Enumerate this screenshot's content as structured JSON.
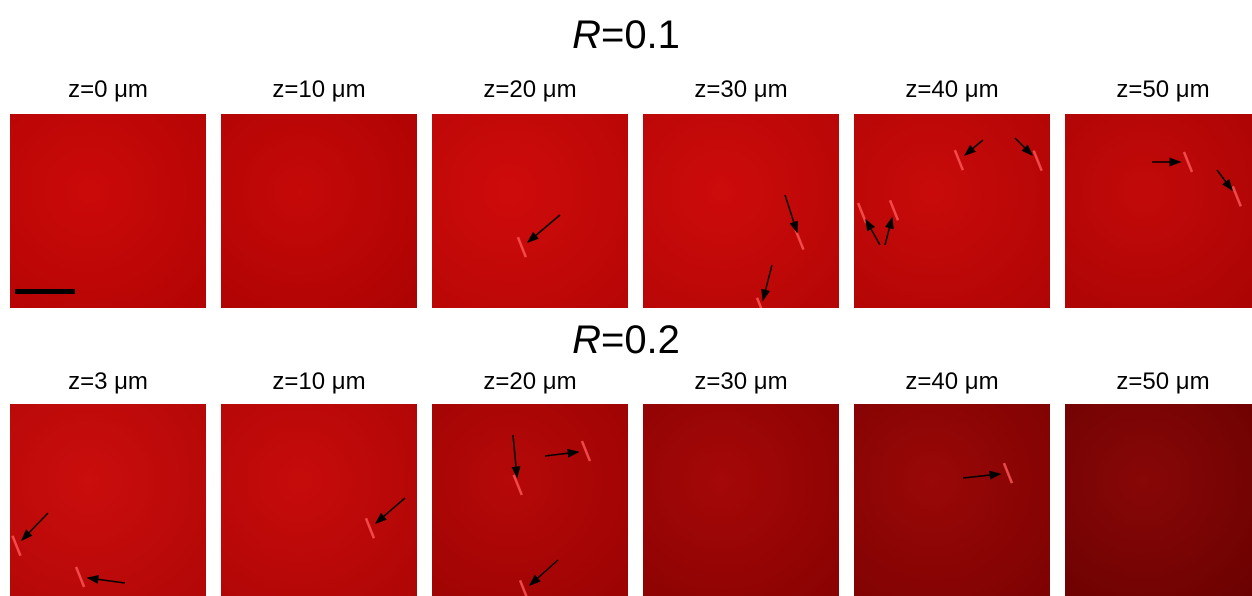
{
  "rows": [
    {
      "title_var": "R",
      "title_rest": "=0.1",
      "panels": [
        "z=0 μm",
        "z=10 μm",
        "z=20 μm",
        "z=30 μm",
        "z=40 μm",
        "z=50 μm"
      ]
    },
    {
      "title_var": "R",
      "title_rest": "=0.2",
      "panels": [
        "z=3 μm",
        "z=10 μm",
        "z=20 μm",
        "z=30 μm",
        "z=40 μm",
        "z=50 μm"
      ]
    }
  ]
}
